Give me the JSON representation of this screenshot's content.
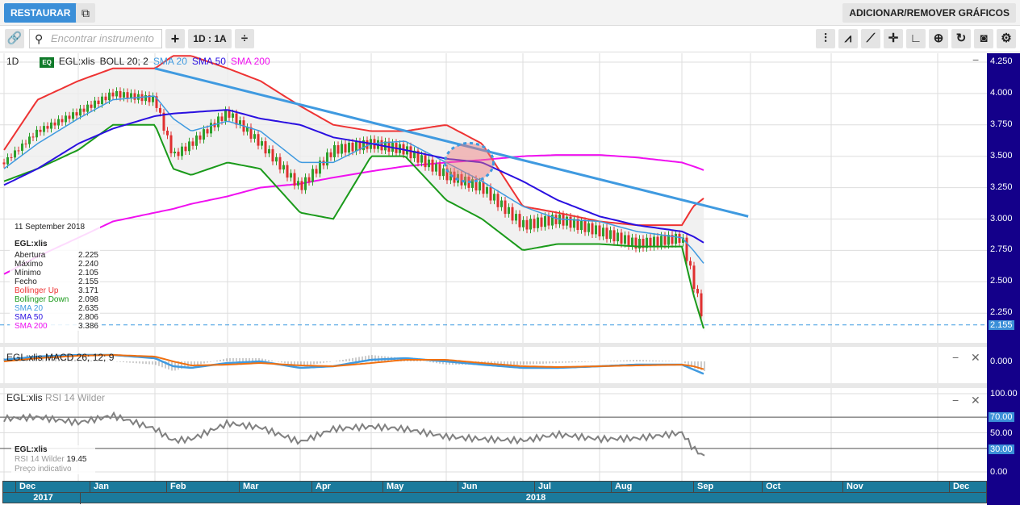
{
  "topbar": {
    "restore": "RESTAURAR",
    "add_remove": "ADICIONAR/REMOVER GRÁFICOS"
  },
  "toolbar": {
    "search_placeholder": "Encontrar instrumento",
    "period": "1D : 1A",
    "icons": [
      "link-icon",
      "search-icon",
      "plus-icon",
      "resize-icon",
      "candles-icon",
      "indicators-icon",
      "line-draw-icon",
      "crosshair-icon",
      "curve-icon",
      "zoom-in-icon",
      "refresh-icon",
      "camera-icon",
      "gear-icon"
    ]
  },
  "legend": {
    "interval": "1D",
    "badge": "EQ",
    "symbol": "EGL:xlis",
    "boll": "BOLL 20; 2",
    "sma20": "SMA 20",
    "sma50": "SMA 50",
    "sma200": "SMA 200"
  },
  "colors": {
    "candle_up": "#2ca02c",
    "candle_down": "#e03030",
    "boll_up": "#e33",
    "boll_down": "#1a9a1a",
    "sma20": "#3f9ae0",
    "sma50": "#2a10e0",
    "sma200": "#f010f0",
    "trendline": "#3f9ae0",
    "axis_bg": "#14008a",
    "time_bg": "#1b7a9c",
    "macd": "#3f9ae0",
    "signal": "#f07010",
    "rsi": "#808080"
  },
  "info": {
    "date": "11 September 2018",
    "symbol": "EGL:xlis",
    "rows": [
      {
        "label": "Abertura",
        "value": "2.225",
        "color": "#222"
      },
      {
        "label": "Máximo",
        "value": "2.240",
        "color": "#222"
      },
      {
        "label": "Mínimo",
        "value": "2.105",
        "color": "#222"
      },
      {
        "label": "Fecho",
        "value": "2.155",
        "color": "#222"
      },
      {
        "label": "Bollinger Up",
        "value": "3.171",
        "color": "#e33"
      },
      {
        "label": "Bollinger Down",
        "value": "2.098",
        "color": "#1a9a1a"
      },
      {
        "label": "SMA 20",
        "value": "2.635",
        "color": "#3f9ae0"
      },
      {
        "label": "SMA 50",
        "value": "2.806",
        "color": "#2a10e0"
      },
      {
        "label": "SMA 200",
        "value": "3.386",
        "color": "#f010f0"
      }
    ]
  },
  "macd": {
    "title": "EGL:xlis  MACD 26; 12; 9",
    "zero": "0.000"
  },
  "rsi": {
    "title_sym": "EGL:xlis",
    "title_ind": "RSI 14 Wilder",
    "info_sym": "EGL:xlis",
    "info_label": "RSI 14 Wilder",
    "info_value": "19.45",
    "info_note": "Preço indicativo",
    "ticks": [
      "100.00",
      "70.00",
      "50.00",
      "30.00",
      "0.00"
    ]
  },
  "price_axis": {
    "ticks": [
      "4.250",
      "4.000",
      "3.750",
      "3.500",
      "3.250",
      "3.000",
      "2.750",
      "2.500",
      "2.250"
    ],
    "last": "2.155"
  },
  "time_axis": {
    "months": [
      "Dec",
      "Jan",
      "Feb",
      "Mar",
      "Apr",
      "May",
      "Jun",
      "Jul",
      "Aug",
      "Sep",
      "Oct",
      "Nov",
      "Dec"
    ],
    "years": [
      "2017",
      "2018"
    ]
  },
  "chart_data": {
    "type": "candlestick",
    "ylim": [
      2.1,
      4.3
    ],
    "dates": [
      "2017-12-01",
      "2017-12-15",
      "2018-01-01",
      "2018-01-15",
      "2018-02-01",
      "2018-02-08",
      "2018-02-15",
      "2018-03-01",
      "2018-03-15",
      "2018-04-01",
      "2018-04-15",
      "2018-05-01",
      "2018-05-15",
      "2018-06-01",
      "2018-06-15",
      "2018-07-01",
      "2018-07-15",
      "2018-08-01",
      "2018-08-15",
      "2018-09-01",
      "2018-09-06",
      "2018-09-11"
    ],
    "close": [
      3.45,
      3.7,
      3.85,
      4.0,
      3.95,
      3.5,
      3.6,
      3.85,
      3.6,
      3.25,
      3.55,
      3.6,
      3.55,
      3.35,
      3.25,
      2.95,
      3.0,
      2.9,
      2.8,
      2.85,
      2.5,
      2.155
    ],
    "sma20": [
      3.4,
      3.6,
      3.8,
      3.95,
      3.98,
      3.8,
      3.7,
      3.78,
      3.7,
      3.45,
      3.45,
      3.6,
      3.62,
      3.45,
      3.3,
      3.1,
      3.0,
      2.98,
      2.9,
      2.85,
      2.75,
      2.635
    ],
    "sma50": [
      3.27,
      3.4,
      3.6,
      3.72,
      3.82,
      3.84,
      3.85,
      3.87,
      3.8,
      3.75,
      3.65,
      3.6,
      3.55,
      3.48,
      3.45,
      3.3,
      3.15,
      3.02,
      2.95,
      2.9,
      2.86,
      2.806
    ],
    "sma200": [
      2.56,
      2.7,
      2.85,
      2.98,
      3.05,
      3.08,
      3.12,
      3.18,
      3.25,
      3.28,
      3.33,
      3.38,
      3.42,
      3.45,
      3.47,
      3.5,
      3.51,
      3.51,
      3.49,
      3.45,
      3.42,
      3.386
    ],
    "boll_up": [
      3.55,
      3.95,
      4.1,
      4.2,
      4.2,
      4.3,
      4.3,
      4.2,
      4.1,
      3.9,
      3.75,
      3.7,
      3.7,
      3.75,
      3.6,
      3.1,
      3.05,
      2.98,
      2.95,
      2.95,
      3.1,
      3.171
    ],
    "boll_down": [
      3.3,
      3.4,
      3.55,
      3.75,
      3.75,
      3.4,
      3.35,
      3.45,
      3.4,
      3.05,
      3.0,
      3.5,
      3.5,
      3.15,
      3.0,
      2.75,
      2.8,
      2.8,
      2.78,
      2.78,
      2.4,
      2.098
    ],
    "rsi": [
      68,
      70,
      63,
      72,
      55,
      40,
      42,
      62,
      57,
      38,
      55,
      58,
      55,
      45,
      42,
      40,
      48,
      42,
      43,
      50,
      30,
      19.45
    ],
    "macd": [
      0.01,
      0.03,
      0.04,
      0.04,
      0.02,
      -0.03,
      -0.04,
      -0.01,
      0.0,
      -0.04,
      -0.03,
      0.01,
      0.02,
      0.0,
      -0.02,
      -0.04,
      -0.04,
      -0.03,
      -0.02,
      -0.02,
      -0.05,
      -0.08
    ],
    "signal": [
      0.0,
      0.02,
      0.035,
      0.04,
      0.03,
      0.0,
      -0.025,
      -0.02,
      -0.01,
      -0.025,
      -0.03,
      -0.01,
      0.01,
      0.01,
      -0.01,
      -0.03,
      -0.035,
      -0.03,
      -0.025,
      -0.02,
      -0.03,
      -0.05
    ],
    "trendline": [
      {
        "date": "2018-02-01",
        "price": 4.2
      },
      {
        "date": "2018-09-30",
        "price": 3.02
      }
    ],
    "last_close": 2.155
  }
}
